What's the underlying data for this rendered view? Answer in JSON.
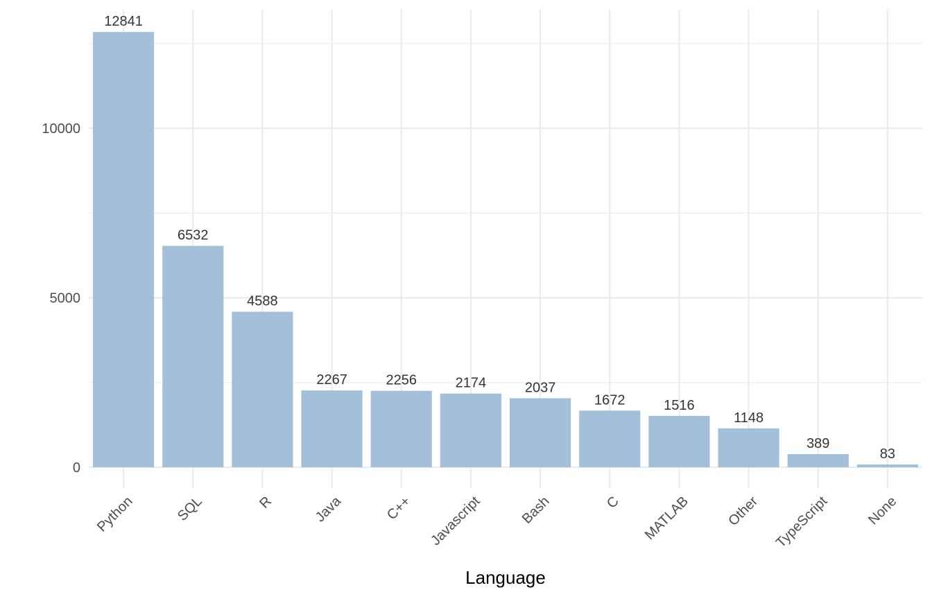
{
  "chart_data": {
    "type": "bar",
    "title": "",
    "xlabel": "Language",
    "ylabel": "",
    "categories": [
      "Python",
      "SQL",
      "R",
      "Java",
      "C++",
      "Javascript",
      "Bash",
      "C",
      "MATLAB",
      "Other",
      "TypeScript",
      "None"
    ],
    "values": [
      12841,
      6532,
      4588,
      2267,
      2256,
      2174,
      2037,
      1672,
      1516,
      1148,
      389,
      83
    ],
    "ylim": [
      0,
      13000
    ],
    "y_ticks": [
      0,
      5000,
      10000
    ],
    "grid": true,
    "legend": "none",
    "bar_color": "#a3bfd9",
    "grid_color": "#ebebeb"
  }
}
